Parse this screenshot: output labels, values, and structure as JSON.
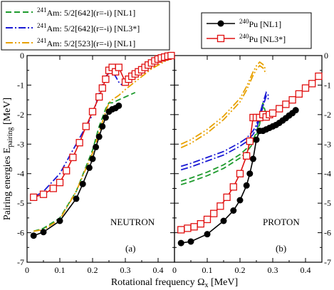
{
  "chart_data": [
    {
      "type": "line",
      "panel_label": "(a)",
      "annotation": "NEUTRON",
      "xlabel": "Rotational frequency Ω",
      "xlabel_sub": "x",
      "xlabel_unit": " [MeV]",
      "ylabel": "Pairing energies E",
      "ylabel_sub": "pairing",
      "ylabel_unit": " [MeV]",
      "xlim": [
        0,
        0.45
      ],
      "ylim": [
        -7,
        0
      ],
      "xticks": [
        0,
        0.1,
        0.2,
        0.3,
        0.4
      ],
      "xtick_labels": [
        "0",
        "0.1",
        "0.2",
        "0.3",
        "0.4"
      ],
      "yticks": [
        -7,
        -6,
        -5,
        -4,
        -3,
        -2,
        -1,
        0
      ],
      "ytick_labels": [
        "-7",
        "-6",
        "-5",
        "-4",
        "-3",
        "-2",
        "-1",
        "0"
      ],
      "series": [
        {
          "name": "Am: 5/2[642](r=-i) [NL1]",
          "key": "am642_nl1",
          "color": "#1f9b2e",
          "dash": "8,4",
          "marker": "none",
          "x": [
            0.02,
            0.05,
            0.1,
            0.15,
            0.2,
            0.22,
            0.24,
            0.25,
            0.26,
            0.28,
            0.3,
            0.33
          ],
          "y": [
            -5.95,
            -5.85,
            -5.5,
            -4.6,
            -3.2,
            -2.4,
            -1.8,
            -1.6,
            -1.6,
            -1.5,
            -1.4,
            -1.25
          ]
        },
        {
          "name": "Am: 5/2[642](r=-i) [NL3*]",
          "key": "am642_nl3",
          "color": "#1a1ad4",
          "dash": "10,3,2,3",
          "marker": "none",
          "x": [
            0.02,
            0.05,
            0.1,
            0.15,
            0.2,
            0.22,
            0.24,
            0.25,
            0.26,
            0.27,
            0.28,
            0.29
          ],
          "y": [
            -4.8,
            -4.6,
            -4.0,
            -3.0,
            -2.0,
            -1.3,
            -0.7,
            -0.6,
            -0.55,
            -0.7,
            -0.9,
            -1.0
          ]
        },
        {
          "name": "Am: 5/2[523](r=-i) [NL1]",
          "key": "am523_nl1",
          "color": "#e8a100",
          "dash": "10,3,2,3,2,3",
          "marker": "none",
          "x": [
            0.02,
            0.05,
            0.1,
            0.15,
            0.2,
            0.22,
            0.24,
            0.25,
            0.26,
            0.28,
            0.3,
            0.34,
            0.38,
            0.42,
            0.45
          ],
          "y": [
            -5.95,
            -5.9,
            -5.55,
            -4.6,
            -3.3,
            -2.6,
            -1.9,
            -1.6,
            -1.5,
            -1.35,
            -1.15,
            -0.8,
            -0.45,
            -0.2,
            -0.05
          ]
        },
        {
          "name": "Pu [NL1]",
          "key": "pu_nl1",
          "color": "#000000",
          "dash": "",
          "marker": "circle",
          "x": [
            0.02,
            0.05,
            0.1,
            0.15,
            0.17,
            0.19,
            0.2,
            0.21,
            0.22,
            0.23,
            0.24,
            0.25,
            0.26,
            0.27,
            0.28
          ],
          "y": [
            -6.1,
            -5.98,
            -5.6,
            -4.85,
            -4.35,
            -3.8,
            -3.5,
            -3.1,
            -2.75,
            -2.4,
            -2.1,
            -1.9,
            -1.82,
            -1.78,
            -1.7
          ]
        },
        {
          "name": "Pu [NL3*]",
          "key": "pu_nl3",
          "color": "#e01010",
          "dash": "",
          "marker": "square",
          "x": [
            0.02,
            0.05,
            0.08,
            0.1,
            0.12,
            0.14,
            0.16,
            0.18,
            0.2,
            0.22,
            0.23,
            0.24,
            0.25,
            0.26,
            0.27,
            0.28,
            0.3,
            0.31,
            0.32,
            0.33,
            0.34,
            0.35,
            0.36,
            0.37,
            0.38,
            0.39,
            0.4,
            0.41,
            0.42,
            0.43,
            0.44
          ],
          "y": [
            -4.8,
            -4.7,
            -4.5,
            -4.3,
            -3.9,
            -3.45,
            -2.95,
            -2.4,
            -1.9,
            -1.4,
            -1.1,
            -0.8,
            -0.5,
            -0.4,
            -0.55,
            -0.4,
            -0.9,
            -0.8,
            -0.7,
            -0.62,
            -0.55,
            -0.48,
            -0.4,
            -0.32,
            -0.25,
            -0.18,
            -0.12,
            -0.08,
            -0.05,
            -0.02,
            0.0
          ]
        }
      ]
    },
    {
      "type": "line",
      "panel_label": "(b)",
      "annotation": "PROTON",
      "xlim": [
        0,
        0.45
      ],
      "ylim": [
        -7,
        0
      ],
      "xticks": [
        0,
        0.1,
        0.2,
        0.3,
        0.4
      ],
      "xtick_labels": [
        "0",
        "0.1",
        "0.2",
        "0.3",
        "0.4"
      ],
      "yticks": [
        -7,
        -6,
        -5,
        -4,
        -3,
        -2,
        -1,
        0
      ],
      "ytick_labels": [
        "-7",
        "-6",
        "-5",
        "-4",
        "-3",
        "-2",
        "-1",
        "0"
      ],
      "series": [
        {
          "key": "am642_nl1",
          "color": "#1f9b2e",
          "dash": "8,4",
          "marker": "none",
          "double": true,
          "x": [
            0.02,
            0.05,
            0.1,
            0.15,
            0.2,
            0.22,
            0.24,
            0.25,
            0.26,
            0.27,
            0.28
          ],
          "y": [
            -4.25,
            -4.15,
            -3.95,
            -3.7,
            -3.35,
            -3.15,
            -2.85,
            -2.6,
            -2.2,
            -1.6,
            -2.0
          ]
        },
        {
          "key": "am642_nl3",
          "color": "#1a1ad4",
          "dash": "10,3,2,3",
          "marker": "none",
          "double": true,
          "x": [
            0.02,
            0.05,
            0.1,
            0.15,
            0.2,
            0.22,
            0.24,
            0.25,
            0.26,
            0.27,
            0.28,
            0.29
          ],
          "y": [
            -3.75,
            -3.65,
            -3.45,
            -3.25,
            -2.95,
            -2.8,
            -2.55,
            -2.35,
            -2.0,
            -1.6,
            -1.25,
            -1.4
          ]
        },
        {
          "key": "am523_nl1",
          "color": "#e8a100",
          "dash": "10,3,2,3,2,3",
          "marker": "none",
          "double": true,
          "x": [
            0.02,
            0.05,
            0.1,
            0.15,
            0.2,
            0.22,
            0.24,
            0.25,
            0.26,
            0.27,
            0.28
          ],
          "y": [
            -3.0,
            -2.85,
            -2.5,
            -2.05,
            -1.45,
            -1.05,
            -0.55,
            -0.35,
            -0.22,
            -0.3,
            -0.5
          ]
        },
        {
          "key": "pu_nl1",
          "color": "#000000",
          "dash": "",
          "marker": "circle",
          "x": [
            0.02,
            0.05,
            0.1,
            0.15,
            0.18,
            0.2,
            0.22,
            0.23,
            0.24,
            0.25,
            0.26,
            0.27,
            0.28,
            0.29,
            0.3,
            0.31,
            0.32,
            0.33,
            0.34,
            0.35,
            0.36,
            0.37
          ],
          "y": [
            -6.35,
            -6.3,
            -6.05,
            -5.6,
            -5.25,
            -4.9,
            -4.4,
            -4.0,
            -3.5,
            -2.85,
            -2.55,
            -2.55,
            -2.5,
            -2.45,
            -2.4,
            -2.35,
            -2.28,
            -2.2,
            -2.12,
            -2.03,
            -1.95,
            -1.85
          ]
        },
        {
          "key": "pu_nl3",
          "color": "#e01010",
          "dash": "",
          "marker": "square",
          "x": [
            0.02,
            0.04,
            0.06,
            0.08,
            0.1,
            0.12,
            0.14,
            0.16,
            0.18,
            0.2,
            0.22,
            0.23,
            0.24,
            0.25,
            0.26,
            0.27,
            0.28,
            0.29,
            0.3,
            0.32,
            0.34,
            0.36,
            0.38,
            0.4,
            0.42,
            0.44
          ],
          "y": [
            -5.9,
            -5.85,
            -5.8,
            -5.7,
            -5.55,
            -5.35,
            -5.1,
            -4.8,
            -4.45,
            -4.0,
            -3.4,
            -2.9,
            -2.1,
            -2.1,
            -2.1,
            -2.0,
            -2.08,
            -2.0,
            -1.95,
            -1.8,
            -1.65,
            -1.5,
            -1.3,
            -1.1,
            -0.95,
            -0.7
          ]
        }
      ]
    }
  ],
  "legend_left": [
    {
      "mass": "241",
      "label": "Am: 5/2[642](r=-i) [NL1]",
      "key": "am642_nl1"
    },
    {
      "mass": "241",
      "label": "Am: 5/2[642](r=-i) [NL3*]",
      "key": "am642_nl3"
    },
    {
      "mass": "241",
      "label": "Am: 5/2[523](r=-i) [NL1]",
      "key": "am523_nl1"
    }
  ],
  "legend_right": [
    {
      "mass": "240",
      "label": "Pu [NL1]",
      "key": "pu_nl1"
    },
    {
      "mass": "240",
      "label": "Pu [NL3*]",
      "key": "pu_nl3"
    }
  ]
}
